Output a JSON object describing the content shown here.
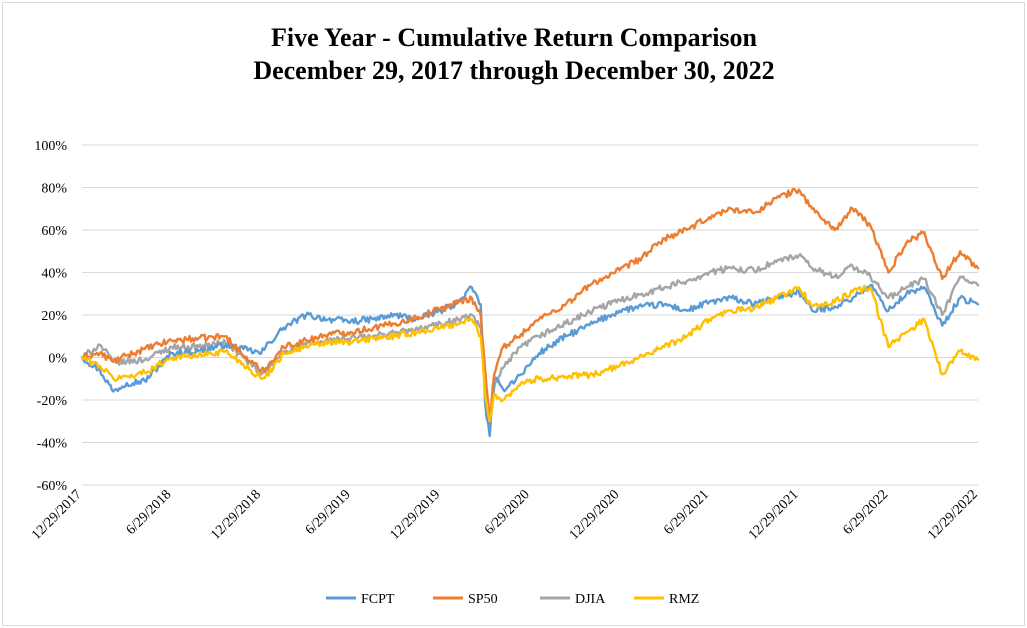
{
  "chart_data": {
    "type": "line",
    "title": "Five Year - Cumulative Return Comparison",
    "subtitle": "December 29, 2017 through December 30, 2022",
    "xlabel": "",
    "ylabel": "",
    "ylim": [
      -0.6,
      1.0
    ],
    "y_ticks": [
      {
        "value": 1.0,
        "label": "100%"
      },
      {
        "value": 0.8,
        "label": "80%"
      },
      {
        "value": 0.6,
        "label": "60%"
      },
      {
        "value": 0.4,
        "label": "40%"
      },
      {
        "value": 0.2,
        "label": "20%"
      },
      {
        "value": 0.0,
        "label": "0%"
      },
      {
        "value": -0.2,
        "label": "-20%"
      },
      {
        "value": -0.4,
        "label": "-40%"
      },
      {
        "value": -0.6,
        "label": "-60%"
      }
    ],
    "x_range": [
      0,
      10
    ],
    "x_ticks": [
      {
        "value": 0,
        "label": "12/29/2017"
      },
      {
        "value": 1,
        "label": "6/29/2018"
      },
      {
        "value": 2,
        "label": "12/29/2018"
      },
      {
        "value": 3,
        "label": "6/29/2019"
      },
      {
        "value": 4,
        "label": "12/29/2019"
      },
      {
        "value": 5,
        "label": "6/29/2020"
      },
      {
        "value": 6,
        "label": "12/29/2020"
      },
      {
        "value": 7,
        "label": "6/29/2021"
      },
      {
        "value": 8,
        "label": "12/29/2021"
      },
      {
        "value": 9,
        "label": "6/29/2022"
      },
      {
        "value": 10,
        "label": "12/29/2022"
      }
    ],
    "x": [
      0,
      0.2,
      0.35,
      0.5,
      0.7,
      1.0,
      1.3,
      1.6,
      1.8,
      2.0,
      2.05,
      2.25,
      2.5,
      2.75,
      3.0,
      3.25,
      3.5,
      3.75,
      4.0,
      4.2,
      4.35,
      4.45,
      4.5,
      4.55,
      4.6,
      4.7,
      4.9,
      5.1,
      5.4,
      5.7,
      6.0,
      6.25,
      6.5,
      6.75,
      7.0,
      7.25,
      7.5,
      7.75,
      8.0,
      8.15,
      8.4,
      8.6,
      8.8,
      9.0,
      9.2,
      9.4,
      9.6,
      9.8,
      10.0
    ],
    "series": [
      {
        "name": "FCPT",
        "color": "#5b9bd5",
        "values": [
          0,
          -0.06,
          -0.16,
          -0.12,
          -0.11,
          0.02,
          0.03,
          0.06,
          0.04,
          0.02,
          0.05,
          0.14,
          0.2,
          0.18,
          0.17,
          0.18,
          0.2,
          0.18,
          0.22,
          0.26,
          0.33,
          0.25,
          -0.22,
          -0.37,
          -0.1,
          -0.15,
          -0.08,
          0.02,
          0.1,
          0.16,
          0.22,
          0.24,
          0.25,
          0.22,
          0.26,
          0.28,
          0.25,
          0.28,
          0.31,
          0.22,
          0.24,
          0.28,
          0.34,
          0.22,
          0.3,
          0.33,
          0.15,
          0.28,
          0.25
        ]
      },
      {
        "name": "SP50",
        "color": "#ed7d31",
        "values": [
          0,
          0.02,
          -0.02,
          0.01,
          0.04,
          0.08,
          0.09,
          0.1,
          0.01,
          -0.06,
          -0.05,
          0.05,
          0.08,
          0.11,
          0.12,
          0.14,
          0.16,
          0.19,
          0.23,
          0.26,
          0.28,
          0.2,
          -0.06,
          -0.3,
          -0.08,
          0.05,
          0.11,
          0.18,
          0.25,
          0.35,
          0.41,
          0.47,
          0.56,
          0.6,
          0.66,
          0.7,
          0.68,
          0.75,
          0.79,
          0.7,
          0.6,
          0.7,
          0.62,
          0.4,
          0.54,
          0.59,
          0.37,
          0.5,
          0.42
        ]
      },
      {
        "name": "DJIA",
        "color": "#a5a5a5",
        "values": [
          0,
          0.06,
          -0.02,
          -0.02,
          -0.01,
          0.05,
          0.05,
          0.07,
          0.0,
          -0.08,
          -0.07,
          0.03,
          0.06,
          0.08,
          0.09,
          0.1,
          0.12,
          0.13,
          0.16,
          0.18,
          0.2,
          0.14,
          -0.1,
          -0.35,
          -0.14,
          -0.05,
          0.05,
          0.1,
          0.16,
          0.22,
          0.27,
          0.3,
          0.33,
          0.36,
          0.4,
          0.42,
          0.41,
          0.45,
          0.48,
          0.42,
          0.38,
          0.43,
          0.38,
          0.28,
          0.33,
          0.37,
          0.2,
          0.38,
          0.34
        ]
      },
      {
        "name": "RMZ",
        "color": "#ffc000",
        "values": [
          0,
          -0.04,
          -0.1,
          -0.09,
          -0.07,
          0.0,
          0.01,
          0.03,
          -0.03,
          -0.1,
          -0.09,
          0.02,
          0.05,
          0.07,
          0.07,
          0.09,
          0.1,
          0.12,
          0.14,
          0.16,
          0.18,
          0.1,
          -0.18,
          -0.3,
          -0.17,
          -0.2,
          -0.12,
          -0.1,
          -0.09,
          -0.08,
          -0.04,
          0.01,
          0.05,
          0.1,
          0.18,
          0.22,
          0.23,
          0.28,
          0.33,
          0.24,
          0.26,
          0.31,
          0.33,
          0.05,
          0.12,
          0.18,
          -0.08,
          0.03,
          -0.01
        ]
      }
    ],
    "legend": {
      "position": "bottom",
      "entries": [
        "FCPT",
        "SP50",
        "DJIA",
        "RMZ"
      ]
    }
  }
}
